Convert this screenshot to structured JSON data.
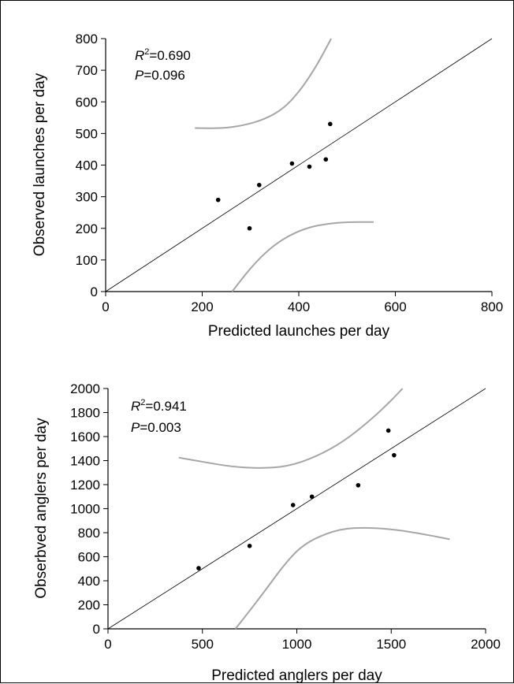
{
  "chart_data": [
    {
      "type": "scatter",
      "xlabel": "Predicted launches per day",
      "ylabel": "Observed launches per day",
      "xlim": [
        0,
        800
      ],
      "ylim": [
        0,
        800
      ],
      "xticks": [
        0,
        200,
        400,
        600,
        800
      ],
      "yticks": [
        0,
        100,
        200,
        300,
        400,
        500,
        600,
        700,
        800
      ],
      "grid": false,
      "stats": {
        "r2_label": "R",
        "r2_sup": "2",
        "r2_value": "=0.690",
        "p_label": "P",
        "p_value": "=0.096"
      },
      "points": [
        {
          "x": 233,
          "y": 290
        },
        {
          "x": 298,
          "y": 200
        },
        {
          "x": 318,
          "y": 337
        },
        {
          "x": 386,
          "y": 405
        },
        {
          "x": 422,
          "y": 395
        },
        {
          "x": 456,
          "y": 418
        },
        {
          "x": 465,
          "y": 530
        }
      ],
      "identity_line": {
        "x": [
          0,
          800
        ],
        "y": [
          0,
          800
        ]
      },
      "upper_band": [
        {
          "x": 185,
          "y": 517
        },
        {
          "x": 240,
          "y": 516
        },
        {
          "x": 285,
          "y": 525
        },
        {
          "x": 330,
          "y": 545
        },
        {
          "x": 370,
          "y": 580
        },
        {
          "x": 405,
          "y": 640
        },
        {
          "x": 435,
          "y": 710
        },
        {
          "x": 455,
          "y": 765
        },
        {
          "x": 467,
          "y": 800
        }
      ],
      "lower_band": [
        {
          "x": 262,
          "y": 0
        },
        {
          "x": 300,
          "y": 75
        },
        {
          "x": 340,
          "y": 137
        },
        {
          "x": 380,
          "y": 178
        },
        {
          "x": 420,
          "y": 203
        },
        {
          "x": 460,
          "y": 215
        },
        {
          "x": 500,
          "y": 220
        },
        {
          "x": 555,
          "y": 220
        }
      ],
      "colors": {
        "points": "#000000",
        "band": "#a6a6a6",
        "line": "#000000"
      }
    },
    {
      "type": "scatter",
      "xlabel": "Predicted anglers per day",
      "ylabel": "Obserbved anglers per day",
      "xlim": [
        0,
        2000
      ],
      "ylim": [
        0,
        2000
      ],
      "xticks": [
        0,
        500,
        1000,
        1500,
        2000
      ],
      "yticks": [
        0,
        200,
        400,
        600,
        800,
        1000,
        1200,
        1400,
        1600,
        1800,
        2000
      ],
      "grid": false,
      "stats": {
        "r2_label": "R",
        "r2_sup": "2",
        "r2_value": "=0.941",
        "p_label": "P",
        "p_value": "=0.003"
      },
      "points": [
        {
          "x": 480,
          "y": 505
        },
        {
          "x": 750,
          "y": 690
        },
        {
          "x": 980,
          "y": 1030
        },
        {
          "x": 1080,
          "y": 1100
        },
        {
          "x": 1325,
          "y": 1195
        },
        {
          "x": 1485,
          "y": 1650
        },
        {
          "x": 1515,
          "y": 1445
        }
      ],
      "identity_line": {
        "x": [
          0,
          2000
        ],
        "y": [
          0,
          2000
        ]
      },
      "upper_band": [
        {
          "x": 375,
          "y": 1425
        },
        {
          "x": 500,
          "y": 1390
        },
        {
          "x": 650,
          "y": 1350
        },
        {
          "x": 800,
          "y": 1335
        },
        {
          "x": 950,
          "y": 1350
        },
        {
          "x": 1100,
          "y": 1430
        },
        {
          "x": 1250,
          "y": 1560
        },
        {
          "x": 1400,
          "y": 1750
        },
        {
          "x": 1500,
          "y": 1900
        },
        {
          "x": 1560,
          "y": 2000
        }
      ],
      "lower_band": [
        {
          "x": 675,
          "y": 0
        },
        {
          "x": 800,
          "y": 250
        },
        {
          "x": 950,
          "y": 570
        },
        {
          "x": 1050,
          "y": 720
        },
        {
          "x": 1200,
          "y": 820
        },
        {
          "x": 1330,
          "y": 845
        },
        {
          "x": 1500,
          "y": 830
        },
        {
          "x": 1650,
          "y": 795
        },
        {
          "x": 1810,
          "y": 745
        }
      ],
      "colors": {
        "points": "#000000",
        "band": "#a6a6a6",
        "line": "#000000"
      }
    }
  ]
}
